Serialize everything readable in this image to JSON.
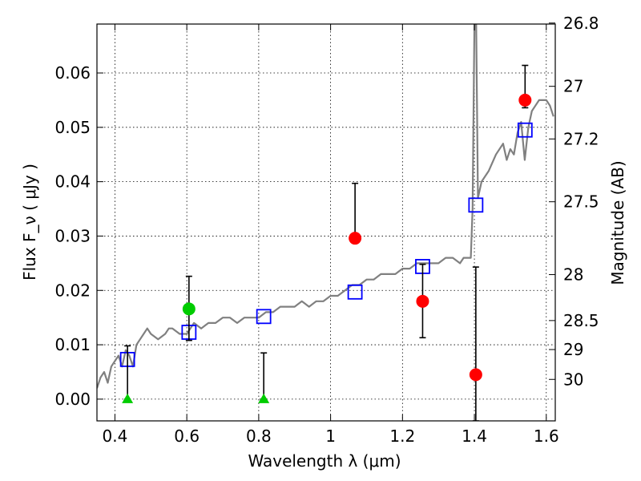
{
  "chart_data": {
    "type": "scatter",
    "xlabel": "Wavelength  λ (μm)",
    "ylabel": "Flux  F_ν  ( μJy )",
    "y2label": "Magnitude (AB)",
    "xlim": [
      0.35,
      1.625
    ],
    "ylim": [
      -0.004,
      0.069
    ],
    "grid": true,
    "x_ticks": [
      0.4,
      0.6,
      0.8,
      1.0,
      1.2,
      1.4,
      1.6
    ],
    "x_tick_labels": [
      "0.4",
      "0.6",
      "0.8",
      "1",
      "1.2",
      "1.4",
      "1.6"
    ],
    "y_ticks": [
      0.0,
      0.01,
      0.02,
      0.03,
      0.04,
      0.05,
      0.06
    ],
    "y_tick_labels": [
      "0.00",
      "0.01",
      "0.02",
      "0.03",
      "0.04",
      "0.05",
      "0.06"
    ],
    "mag_ticks": [
      26.8,
      27,
      27.2,
      27.5,
      28,
      28.5,
      29,
      30
    ],
    "mag_tick_labels": [
      "26.8",
      "27",
      "27.2",
      "27.5",
      "28",
      "28.5",
      "29",
      "30"
    ],
    "series": [
      {
        "kind": "line",
        "color": "#808080",
        "x": [
          0.35,
          0.36,
          0.37,
          0.38,
          0.39,
          0.4,
          0.41,
          0.42,
          0.43,
          0.44,
          0.45,
          0.46,
          0.47,
          0.48,
          0.49,
          0.5,
          0.52,
          0.54,
          0.55,
          0.56,
          0.58,
          0.6,
          0.61,
          0.62,
          0.64,
          0.66,
          0.68,
          0.7,
          0.72,
          0.74,
          0.76,
          0.78,
          0.8,
          0.82,
          0.84,
          0.86,
          0.88,
          0.9,
          0.92,
          0.94,
          0.96,
          0.98,
          1.0,
          1.02,
          1.04,
          1.06,
          1.08,
          1.1,
          1.12,
          1.14,
          1.16,
          1.18,
          1.2,
          1.22,
          1.24,
          1.26,
          1.28,
          1.3,
          1.32,
          1.34,
          1.36,
          1.37,
          1.38,
          1.39,
          1.395,
          1.4,
          1.405,
          1.41,
          1.42,
          1.44,
          1.46,
          1.48,
          1.49,
          1.5,
          1.51,
          1.52,
          1.53,
          1.54,
          1.55,
          1.56,
          1.57,
          1.58,
          1.59,
          1.6,
          1.61,
          1.62
        ],
        "y": [
          0.002,
          0.004,
          0.005,
          0.003,
          0.006,
          0.007,
          0.008,
          0.006,
          0.009,
          0.008,
          0.006,
          0.01,
          0.011,
          0.012,
          0.013,
          0.012,
          0.011,
          0.012,
          0.013,
          0.013,
          0.012,
          0.012,
          0.013,
          0.014,
          0.013,
          0.014,
          0.014,
          0.015,
          0.015,
          0.014,
          0.015,
          0.015,
          0.015,
          0.016,
          0.016,
          0.017,
          0.017,
          0.017,
          0.018,
          0.017,
          0.018,
          0.018,
          0.019,
          0.019,
          0.02,
          0.021,
          0.021,
          0.022,
          0.022,
          0.023,
          0.023,
          0.023,
          0.024,
          0.024,
          0.025,
          0.025,
          0.025,
          0.025,
          0.026,
          0.026,
          0.025,
          0.026,
          0.026,
          0.026,
          0.035,
          0.069,
          0.069,
          0.037,
          0.04,
          0.042,
          0.045,
          0.047,
          0.044,
          0.046,
          0.045,
          0.049,
          0.051,
          0.044,
          0.05,
          0.053,
          0.054,
          0.055,
          0.055,
          0.055,
          0.054,
          0.052
        ]
      },
      {
        "kind": "markers",
        "marker": "open-square",
        "color": "#0000ff",
        "x": [
          0.435,
          0.606,
          0.814,
          1.068,
          1.256,
          1.404,
          1.541
        ],
        "y": [
          0.0073,
          0.0123,
          0.0152,
          0.0197,
          0.0244,
          0.0357,
          0.0495
        ]
      },
      {
        "kind": "markers",
        "marker": "circle",
        "color": "#ff0000",
        "x": [
          1.068,
          1.256,
          1.404,
          1.541
        ],
        "y": [
          0.0296,
          0.018,
          0.0045,
          0.055
        ],
        "err_low": [
          0.0296,
          0.0113,
          -0.004,
          0.0536
        ],
        "err_high": [
          0.0397,
          0.0248,
          0.0243,
          0.0614
        ]
      },
      {
        "kind": "markers",
        "marker": "circle",
        "color": "#00cc00",
        "x": [
          0.606
        ],
        "y": [
          0.0166
        ],
        "err_low": [
          0.0108
        ],
        "err_high": [
          0.0226
        ]
      },
      {
        "kind": "markers",
        "marker": "triangle",
        "color": "#00cc00",
        "x": [
          0.435,
          0.814
        ],
        "y": [
          0.0,
          0.0
        ],
        "err_low": [
          0.0,
          0.0
        ],
        "err_high": [
          0.0098,
          0.0085
        ]
      }
    ]
  }
}
